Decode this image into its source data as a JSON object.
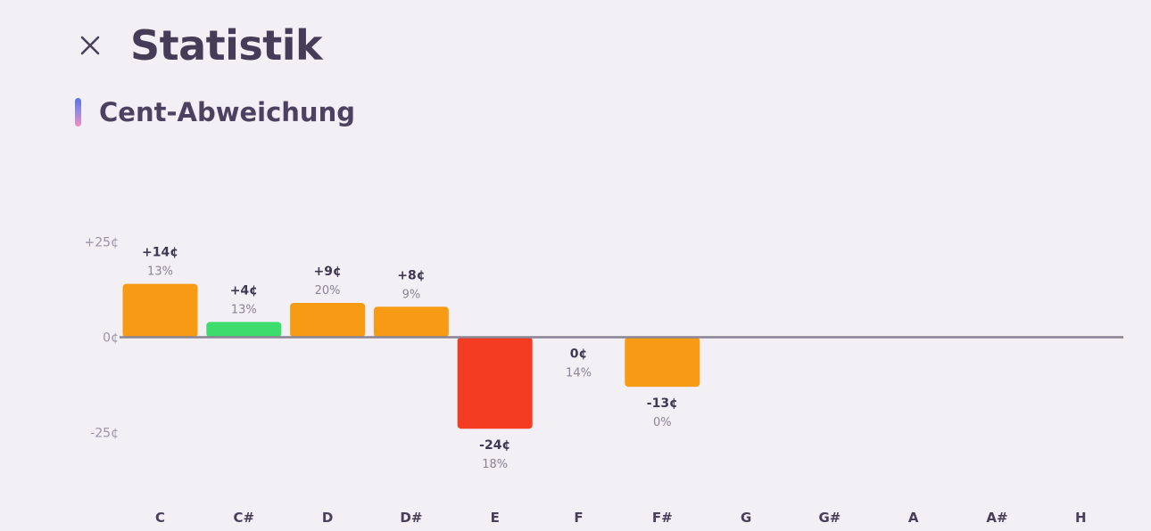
{
  "header": {
    "title": "Statistik",
    "close_icon": "close-icon"
  },
  "section": {
    "title": "Cent-Abweichung"
  },
  "colors": {
    "background": "#f2eff5",
    "orange": "#f79b14",
    "green": "#3ddc6c",
    "red": "#f43c22",
    "zero_line": "#8a8494",
    "accent_top": "#5b74e6",
    "accent_bottom": "#f08cc0"
  },
  "chart_data": {
    "type": "bar",
    "categories": [
      "C",
      "C#",
      "D",
      "D#",
      "E",
      "F",
      "F#",
      "G",
      "G#",
      "A",
      "A#",
      "H"
    ],
    "values": [
      14,
      4,
      9,
      8,
      -24,
      0,
      -13,
      null,
      null,
      null,
      null,
      null
    ],
    "value_labels": [
      "+14¢",
      "+4¢",
      "+9¢",
      "+8¢",
      "-24¢",
      "0¢",
      "-13¢",
      "",
      "",
      "",
      "",
      ""
    ],
    "percent_labels": [
      "13%",
      "13%",
      "20%",
      "9%",
      "18%",
      "14%",
      "0%",
      "",
      "",
      "",
      "",
      ""
    ],
    "bar_colors": [
      "orange",
      "green",
      "orange",
      "orange",
      "red",
      "none",
      "orange",
      "none",
      "none",
      "none",
      "none",
      "none"
    ],
    "y_ticks": [
      25,
      0,
      -25
    ],
    "y_tick_labels": [
      "+25¢",
      "0¢",
      "-25¢"
    ],
    "ylim": [
      -40,
      40
    ],
    "xlabel": "",
    "ylabel": "",
    "grid": false
  }
}
